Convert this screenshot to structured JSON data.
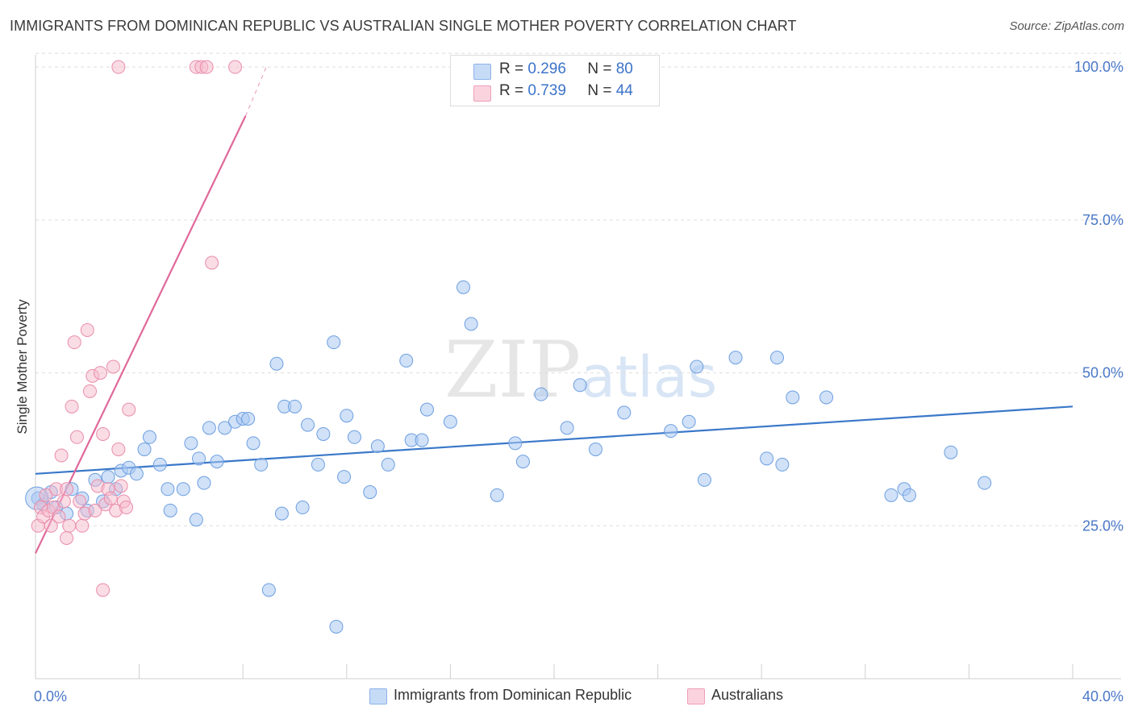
{
  "header": {
    "title": "IMMIGRANTS FROM DOMINICAN REPUBLIC VS AUSTRALIAN SINGLE MOTHER POVERTY CORRELATION CHART",
    "source": "Source: ZipAtlas.com"
  },
  "watermark": "ZIPatlas",
  "legend": {
    "rows": [
      {
        "r_label": "R =",
        "r_value": "0.296",
        "n_label": "N =",
        "n_value": "80",
        "color": "#a9c8f2"
      },
      {
        "r_label": "R =",
        "r_value": "0.739",
        "n_label": "N =",
        "n_value": "44",
        "color": "#f6b9cb"
      }
    ]
  },
  "bottom_legend": [
    {
      "label": "Immigrants from Dominican Republic",
      "color": "#a9c8f2"
    },
    {
      "label": "Australians",
      "color": "#f6b9cb"
    }
  ],
  "colors": {
    "blue_fill": "#a9c8f2",
    "blue_stroke": "#6d9fe0",
    "blue_line": "#3a78c9",
    "pink_fill": "#f6b9cb",
    "pink_stroke": "#ea8dab",
    "pink_line": "#e0689a",
    "axis_text": "#4a78c8"
  },
  "chart_data": {
    "type": "scatter",
    "title": "IMMIGRANTS FROM DOMINICAN REPUBLIC VS AUSTRALIAN SINGLE MOTHER POVERTY CORRELATION CHART",
    "xlabel": "",
    "ylabel": "Single Mother Poverty",
    "xlim": [
      0,
      40
    ],
    "ylim": [
      0,
      102
    ],
    "x_tick_labels": [
      {
        "value": 0,
        "label": "0.0%"
      },
      {
        "value": 40,
        "label": "40.0%"
      }
    ],
    "x_minor_ticks": [
      0,
      4,
      8,
      12,
      16,
      20,
      24,
      28,
      32,
      36,
      40
    ],
    "y_ticks": [
      {
        "value": 25,
        "label": "25.0%"
      },
      {
        "value": 50,
        "label": "50.0%"
      },
      {
        "value": 75,
        "label": "75.0%"
      },
      {
        "value": 100,
        "label": "100.0%"
      }
    ],
    "grid": "horizontal-dashed",
    "series": [
      {
        "name": "Immigrants from Dominican Republic",
        "R": 0.296,
        "N": 80,
        "trend": {
          "x": [
            0,
            40
          ],
          "y": [
            33.5,
            44.5
          ]
        },
        "points": [
          [
            0.1,
            29.5
          ],
          [
            0.3,
            28.5
          ],
          [
            0.6,
            30.5
          ],
          [
            0.8,
            28
          ],
          [
            1.2,
            27
          ],
          [
            1.4,
            31
          ],
          [
            1.8,
            29.5
          ],
          [
            2.0,
            27.5
          ],
          [
            2.3,
            32.5
          ],
          [
            2.6,
            29
          ],
          [
            2.8,
            33
          ],
          [
            3.1,
            31
          ],
          [
            3.3,
            34
          ],
          [
            3.6,
            34.5
          ],
          [
            3.9,
            33.5
          ],
          [
            4.2,
            37.5
          ],
          [
            4.4,
            39.5
          ],
          [
            4.8,
            35
          ],
          [
            5.1,
            31
          ],
          [
            5.2,
            27.5
          ],
          [
            5.7,
            31
          ],
          [
            6.0,
            38.5
          ],
          [
            6.2,
            26
          ],
          [
            6.3,
            36
          ],
          [
            6.5,
            32
          ],
          [
            6.7,
            41
          ],
          [
            7.0,
            35.5
          ],
          [
            7.3,
            41
          ],
          [
            7.7,
            42
          ],
          [
            8.0,
            42.5
          ],
          [
            8.2,
            42.5
          ],
          [
            8.4,
            38.5
          ],
          [
            8.7,
            35
          ],
          [
            9.0,
            14.5
          ],
          [
            9.3,
            51.5
          ],
          [
            9.5,
            27
          ],
          [
            9.6,
            44.5
          ],
          [
            10.0,
            44.5
          ],
          [
            10.3,
            28
          ],
          [
            10.5,
            41.5
          ],
          [
            10.9,
            35
          ],
          [
            11.1,
            40
          ],
          [
            11.5,
            55
          ],
          [
            11.6,
            8.5
          ],
          [
            11.9,
            33
          ],
          [
            12.0,
            43
          ],
          [
            12.3,
            39.5
          ],
          [
            12.9,
            30.5
          ],
          [
            13.2,
            38
          ],
          [
            13.6,
            35
          ],
          [
            14.3,
            52
          ],
          [
            14.5,
            39
          ],
          [
            14.9,
            39
          ],
          [
            15.1,
            44
          ],
          [
            16.0,
            42
          ],
          [
            16.5,
            64
          ],
          [
            16.8,
            58
          ],
          [
            17.8,
            30
          ],
          [
            18.5,
            38.5
          ],
          [
            18.8,
            35.5
          ],
          [
            19.5,
            46.5
          ],
          [
            20.5,
            41
          ],
          [
            21.0,
            48
          ],
          [
            21.6,
            37.5
          ],
          [
            22.7,
            43.5
          ],
          [
            24.5,
            40.5
          ],
          [
            25.2,
            42
          ],
          [
            25.5,
            51
          ],
          [
            25.8,
            32.5
          ],
          [
            27.0,
            52.5
          ],
          [
            28.2,
            36
          ],
          [
            28.6,
            52.5
          ],
          [
            28.8,
            35
          ],
          [
            29.2,
            46
          ],
          [
            30.5,
            46
          ],
          [
            33.0,
            30
          ],
          [
            33.5,
            31
          ],
          [
            33.7,
            30
          ],
          [
            35.3,
            37
          ],
          [
            36.6,
            32
          ]
        ]
      },
      {
        "name": "Australians",
        "R": 0.739,
        "N": 44,
        "trend": {
          "x": [
            0,
            8.1
          ],
          "y": [
            20.5,
            92
          ]
        },
        "trend_dashed": {
          "x": [
            8.1,
            8.9
          ],
          "y": [
            92,
            100
          ]
        },
        "points": [
          [
            0.1,
            25
          ],
          [
            0.2,
            28
          ],
          [
            0.3,
            26.5
          ],
          [
            0.4,
            30
          ],
          [
            0.5,
            27.5
          ],
          [
            0.6,
            25
          ],
          [
            0.7,
            28
          ],
          [
            0.8,
            31
          ],
          [
            0.9,
            26.5
          ],
          [
            1.0,
            36.5
          ],
          [
            1.1,
            29
          ],
          [
            1.2,
            31
          ],
          [
            1.2,
            23
          ],
          [
            1.3,
            25
          ],
          [
            1.4,
            44.5
          ],
          [
            1.5,
            55
          ],
          [
            1.6,
            39.5
          ],
          [
            1.7,
            29
          ],
          [
            1.8,
            25
          ],
          [
            1.9,
            27
          ],
          [
            2.0,
            57
          ],
          [
            2.1,
            47
          ],
          [
            2.2,
            49.5
          ],
          [
            2.3,
            27.5
          ],
          [
            2.4,
            31.5
          ],
          [
            2.5,
            50
          ],
          [
            2.6,
            40
          ],
          [
            2.6,
            14.5
          ],
          [
            2.7,
            28.5
          ],
          [
            2.8,
            31
          ],
          [
            2.9,
            29.5
          ],
          [
            3.0,
            51
          ],
          [
            3.1,
            27.5
          ],
          [
            3.2,
            37.5
          ],
          [
            3.3,
            31.5
          ],
          [
            3.4,
            29
          ],
          [
            3.5,
            28
          ],
          [
            3.6,
            44
          ],
          [
            3.2,
            100
          ],
          [
            6.2,
            100
          ],
          [
            6.4,
            100
          ],
          [
            6.6,
            100
          ],
          [
            7.7,
            100
          ],
          [
            6.8,
            68
          ]
        ]
      }
    ]
  }
}
